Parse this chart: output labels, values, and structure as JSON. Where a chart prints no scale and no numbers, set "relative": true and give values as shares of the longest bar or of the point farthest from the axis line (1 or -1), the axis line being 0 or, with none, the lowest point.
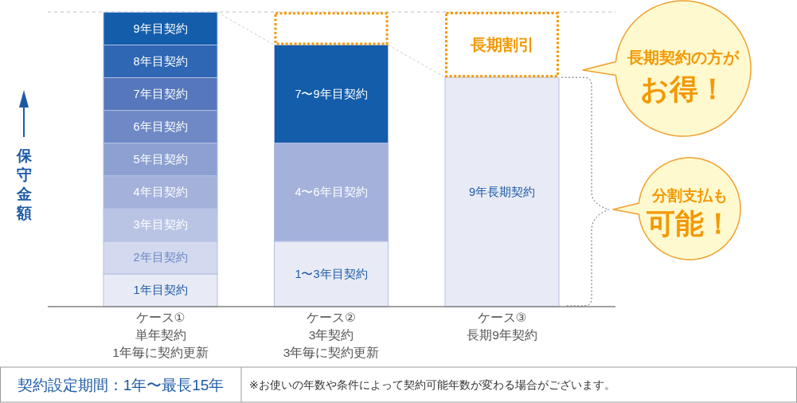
{
  "chart_data": {
    "type": "bar",
    "stacked": true,
    "relative": true,
    "ylabel": "保守金額",
    "categories": [
      "ケース①\n単年契約\n1年毎に契約更新",
      "ケース②\n3年契約\n3年毎に契約更新",
      "ケース③\n長期9年契約"
    ],
    "series": [
      {
        "name": "1年目契約",
        "color": "#e8ebf6",
        "values": [
          0.111,
          null,
          null
        ]
      },
      {
        "name": "2年目契約",
        "color": "#d3d9ee",
        "values": [
          0.111,
          null,
          null
        ]
      },
      {
        "name": "3年目契約",
        "color": "#b9c4e5",
        "values": [
          0.111,
          null,
          null
        ]
      },
      {
        "name": "4年目契約",
        "color": "#a3b1db",
        "values": [
          0.111,
          null,
          null
        ]
      },
      {
        "name": "5年目契約",
        "color": "#8ca0d1",
        "values": [
          0.111,
          null,
          null
        ]
      },
      {
        "name": "6年目契約",
        "color": "#6e89c6",
        "values": [
          0.111,
          null,
          null
        ]
      },
      {
        "name": "7年目契約",
        "color": "#5677bb",
        "values": [
          0.111,
          null,
          null
        ]
      },
      {
        "name": "8年目契約",
        "color": "#2f67b4",
        "values": [
          0.111,
          null,
          null
        ]
      },
      {
        "name": "9年目契約",
        "color": "#135dab",
        "values": [
          0.111,
          null,
          null
        ]
      },
      {
        "name": "1〜3年目契約",
        "color": "#e8ebf6",
        "values": [
          null,
          0.222,
          null
        ]
      },
      {
        "name": "4〜6年目契約",
        "color": "#a3b1db",
        "values": [
          null,
          0.333,
          null
        ]
      },
      {
        "name": "7〜9年目契約",
        "color": "#135dab",
        "values": [
          null,
          0.333,
          null
        ]
      },
      {
        "color": "#f39800",
        "line_style": "dotted",
        "values": [
          null,
          0.111,
          null
        ]
      },
      {
        "name": "9年長期契約",
        "color": "#e8ebf6",
        "values": [
          null,
          null,
          0.778
        ]
      },
      {
        "name": "長期割引",
        "color": "#f39800",
        "line_style": "dotted",
        "values": [
          null,
          null,
          0.222
        ]
      }
    ],
    "ref_lines": [
      {
        "axis": "y",
        "value": 1,
        "line_style": "dashed",
        "color": "#d5d5d5"
      }
    ],
    "annotations": [
      "長期契約の方が",
      "お得！",
      "分割支払も",
      "可能！",
      "契約設定期間：1年〜最長15年",
      "※お使いの年数や条件によって契約可能年数が変わる場合がございます。"
    ]
  }
}
